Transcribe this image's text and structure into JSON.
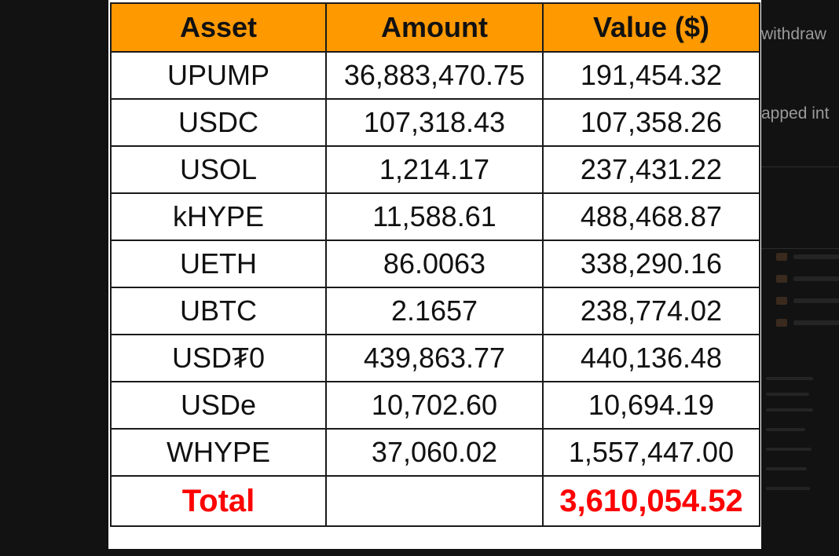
{
  "table": {
    "headers": [
      "Asset",
      "Amount",
      "Value ($)"
    ],
    "rows": [
      {
        "asset": "UPUMP",
        "amount": "36,883,470.75",
        "value": "191,454.32"
      },
      {
        "asset": "USDC",
        "amount": "107,318.43",
        "value": "107,358.26"
      },
      {
        "asset": "USOL",
        "amount": "1,214.17",
        "value": "237,431.22"
      },
      {
        "asset": "kHYPE",
        "amount": "11,588.61",
        "value": "488,468.87"
      },
      {
        "asset": "UETH",
        "amount": "86.0063",
        "value": "338,290.16"
      },
      {
        "asset": "UBTC",
        "amount": "2.1657",
        "value": "238,774.02"
      },
      {
        "asset": "USD₮0",
        "amount": "439,863.77",
        "value": "440,136.48"
      },
      {
        "asset": "USDe",
        "amount": "10,702.60",
        "value": "10,694.19"
      },
      {
        "asset": "WHYPE",
        "amount": "37,060.02",
        "value": "1,557,447.00"
      }
    ],
    "total": {
      "label": "Total",
      "amount": "",
      "value": "3,610,054.52"
    }
  },
  "background_text": {
    "line1": "withdraw",
    "line2": "apped int"
  },
  "colors": {
    "header_bg": "#ff9900",
    "total_text": "#ff0000",
    "page_bg": "#121212"
  }
}
